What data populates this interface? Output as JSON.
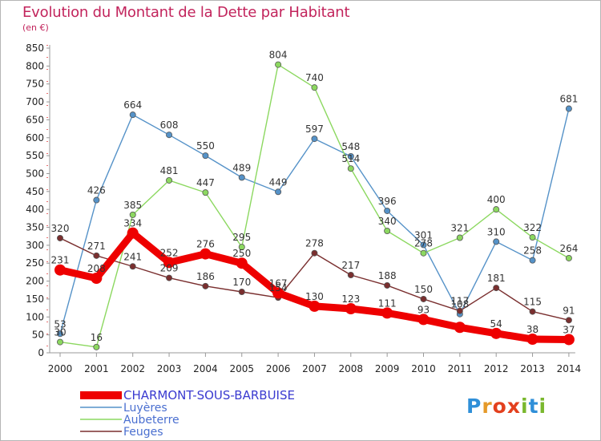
{
  "header": {
    "title": "Evolution du Montant de la Dette par Habitant",
    "unit": "(en €)"
  },
  "logo": {
    "text": "Proxiti",
    "letters": [
      "P",
      "r",
      "o",
      "x",
      "i",
      "t",
      "i"
    ],
    "colors": [
      "#2f8fd8",
      "#e59a2a",
      "#e3401e",
      "#e3401e",
      "#7ab82e",
      "#2f8fd8",
      "#7ab82e"
    ]
  },
  "chart_data": {
    "type": "line",
    "title": "Evolution du Montant de la Dette par Habitant",
    "ylabel": "(en €)",
    "xlabel": "",
    "x": [
      "2000",
      "2001",
      "2002",
      "2003",
      "2004",
      "2005",
      "2006",
      "2007",
      "2008",
      "2009",
      "2010",
      "2011",
      "2012",
      "2013",
      "2014"
    ],
    "y_ticks": [
      0,
      50,
      100,
      150,
      200,
      250,
      300,
      350,
      400,
      450,
      500,
      550,
      600,
      650,
      700,
      750,
      800,
      850
    ],
    "ylim": [
      0,
      850
    ],
    "grid": false,
    "legend_position": "bottom-left",
    "series": [
      {
        "name": "CHARMONT-SOUS-BARBUISE",
        "color": "#ee0000",
        "values": [
          231,
          208,
          334,
          252,
          276,
          250,
          167,
          130,
          123,
          111,
          93,
          71,
          54,
          38,
          37
        ],
        "labels": [
          "231",
          "208",
          "334",
          "252",
          "276",
          "250",
          "167",
          "130",
          "123",
          "111",
          "93",
          "",
          "54",
          "38",
          "37"
        ]
      },
      {
        "name": "Luyères",
        "color": "#5592c8",
        "values": [
          53,
          426,
          664,
          608,
          550,
          489,
          449,
          597,
          548,
          396,
          301,
          108,
          310,
          258,
          681
        ],
        "labels": [
          "53",
          "426",
          "664",
          "608",
          "550",
          "489",
          "449",
          "597",
          "548",
          "396",
          "301",
          "108",
          "310",
          "258",
          "681"
        ]
      },
      {
        "name": "Aubeterre",
        "color": "#8cd860",
        "values": [
          30,
          16,
          385,
          481,
          447,
          295,
          804,
          740,
          514,
          340,
          278,
          321,
          400,
          322,
          264
        ],
        "labels": [
          "30",
          "16",
          "385",
          "481",
          "447",
          "295",
          "804",
          "740",
          "514",
          "340",
          "278",
          "321",
          "400",
          "322",
          "264"
        ]
      },
      {
        "name": "Feuges",
        "color": "#7a2f2f",
        "values": [
          320,
          271,
          241,
          209,
          186,
          170,
          154,
          278,
          217,
          188,
          150,
          117,
          181,
          115,
          91
        ],
        "labels": [
          "320",
          "271",
          "241",
          "209",
          "186",
          "170",
          "154",
          "278",
          "217",
          "188",
          "150",
          "117",
          "181",
          "115",
          "91"
        ]
      }
    ]
  }
}
